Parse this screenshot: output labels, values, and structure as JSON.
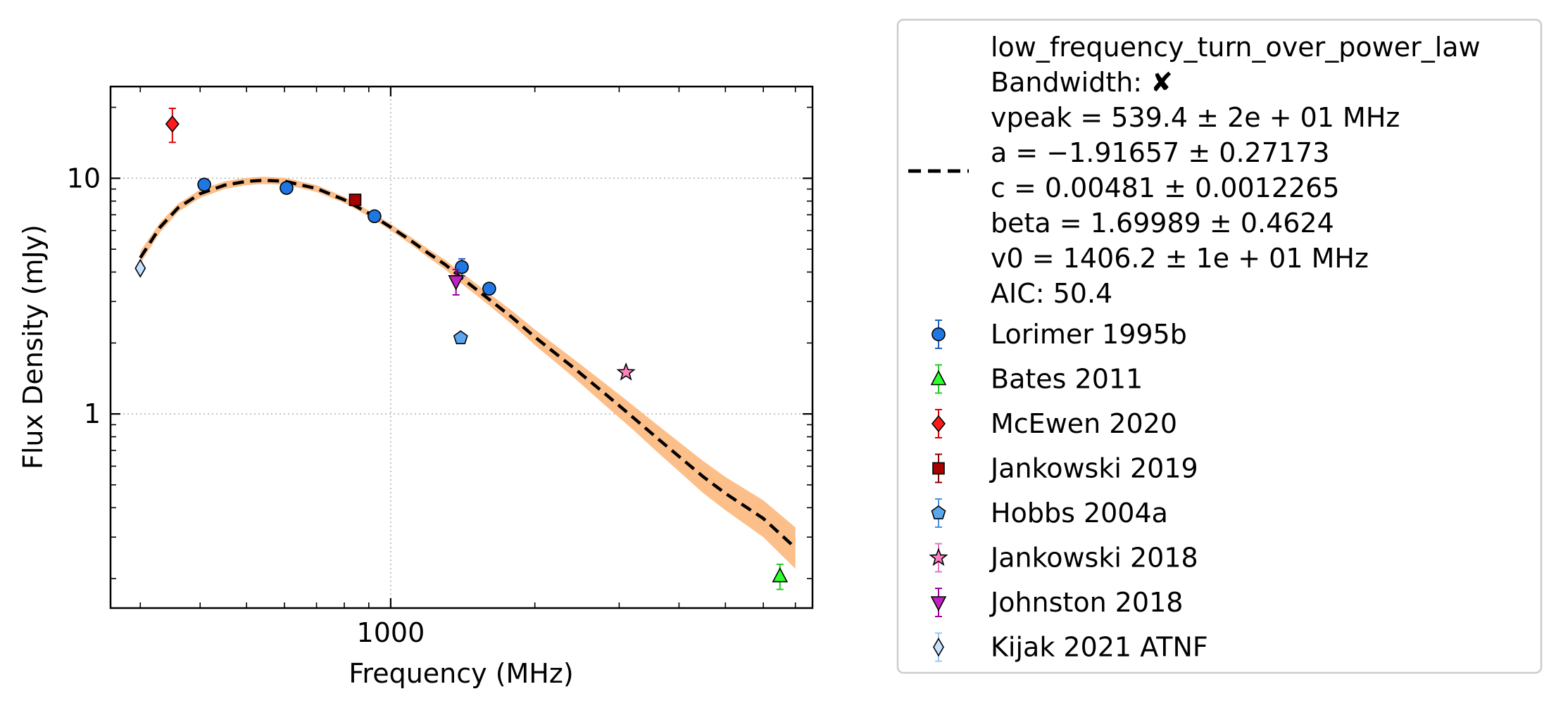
{
  "chart_data": {
    "type": "scatter",
    "title": "",
    "xlabel": "Frequency (MHz)",
    "ylabel": "Flux Density (mJy)",
    "xscale": "log",
    "yscale": "log",
    "xlim": [
      260,
      7600
    ],
    "ylim": [
      0.15,
      24.5
    ],
    "x_tick_labels": [
      {
        "value": 1000,
        "label": "1000"
      }
    ],
    "y_tick_labels": [
      {
        "value": 1,
        "label": "1"
      },
      {
        "value": 10,
        "label": "10"
      }
    ],
    "grid": true,
    "legend_position": "outside-right",
    "fit": {
      "name": "low_frequency_turn_over_power_law",
      "bandwidth_label": "Bandwidth: ✘",
      "param_lines": [
        "vpeak = 539.4 ± 2e + 01 MHz",
        "a = −1.91657 ± 0.27173",
        "c = 0.00481 ± 0.0012265",
        "beta = 1.69989 ± 0.4624",
        "v0 = 1406.2 ± 1e + 01 MHz",
        "AIC: 50.4"
      ],
      "x": [
        300,
        330,
        360,
        400,
        450,
        500,
        540,
        600,
        700,
        800,
        900,
        1000,
        1100,
        1200,
        1300,
        1400,
        1600,
        1800,
        2000,
        2400,
        2800,
        3200,
        3600,
        4000,
        4500,
        5000,
        6000,
        7000
      ],
      "y": [
        4.6,
        6.2,
        7.5,
        8.6,
        9.35,
        9.7,
        9.8,
        9.72,
        9.05,
        8.1,
        7.1,
        6.2,
        5.45,
        4.8,
        4.3,
        3.8,
        3.08,
        2.55,
        2.12,
        1.58,
        1.22,
        0.97,
        0.79,
        0.66,
        0.54,
        0.46,
        0.36,
        0.27
      ],
      "lower": [
        4.35,
        5.9,
        7.2,
        8.25,
        9.0,
        9.35,
        9.45,
        9.4,
        8.75,
        7.85,
        6.9,
        6.0,
        5.25,
        4.6,
        4.1,
        3.6,
        2.9,
        2.38,
        1.96,
        1.44,
        1.09,
        0.86,
        0.69,
        0.57,
        0.46,
        0.39,
        0.3,
        0.22
      ],
      "upper": [
        4.9,
        6.5,
        7.8,
        8.95,
        9.7,
        10.05,
        10.15,
        10.05,
        9.35,
        8.35,
        7.3,
        6.4,
        5.65,
        5.0,
        4.5,
        4.0,
        3.26,
        2.72,
        2.28,
        1.72,
        1.35,
        1.09,
        0.9,
        0.76,
        0.63,
        0.54,
        0.43,
        0.33
      ],
      "line_color": "#000000",
      "band_color": "#fdbf8a"
    },
    "series": [
      {
        "name": "Lorimer 1995b",
        "marker": "circle",
        "color": "#1f77e4",
        "err_color": "#1f5fbf",
        "points": [
          {
            "x": 408,
            "y": 9.4,
            "err": 0
          },
          {
            "x": 606,
            "y": 9.1,
            "err": 0
          },
          {
            "x": 925,
            "y": 6.9,
            "err": 0
          },
          {
            "x": 1408,
            "y": 4.2,
            "err": 0.35
          },
          {
            "x": 1606,
            "y": 3.4,
            "err": 0
          }
        ]
      },
      {
        "name": "Bates 2011",
        "marker": "triangle-up",
        "color": "#2eff2e",
        "err_color": "#22cc22",
        "points": [
          {
            "x": 6500,
            "y": 0.205,
            "err": 0.025
          }
        ]
      },
      {
        "name": "McEwen 2020",
        "marker": "diamond",
        "color": "#ff1a1a",
        "err_color": "#dd0000",
        "points": [
          {
            "x": 350,
            "y": 17.0,
            "err": 2.8
          }
        ]
      },
      {
        "name": "Jankowski 2019",
        "marker": "square",
        "color": "#a80000",
        "err_color": "#8b0000",
        "points": [
          {
            "x": 843,
            "y": 8.1,
            "err": 0
          }
        ]
      },
      {
        "name": "Hobbs 2004a",
        "marker": "pentagon",
        "color": "#5aa7f0",
        "err_color": "#4a90e2",
        "points": [
          {
            "x": 1400,
            "y": 2.1,
            "err": 0
          }
        ]
      },
      {
        "name": "Jankowski 2018",
        "marker": "star",
        "color": "#ff7fbf",
        "err_color": "#e377c2",
        "points": [
          {
            "x": 3100,
            "y": 1.5,
            "err": 0
          }
        ]
      },
      {
        "name": "Johnston 2018",
        "marker": "triangle-down",
        "color": "#c21fc2",
        "err_color": "#a000a0",
        "points": [
          {
            "x": 1369,
            "y": 3.65,
            "err": 0.45
          }
        ]
      },
      {
        "name": "Kijak 2021 ATNF",
        "marker": "thin-diamond",
        "color": "#c6e2ff",
        "err_color": "#9cc8f0",
        "points": [
          {
            "x": 300,
            "y": 4.15,
            "err": 0
          }
        ]
      }
    ]
  }
}
